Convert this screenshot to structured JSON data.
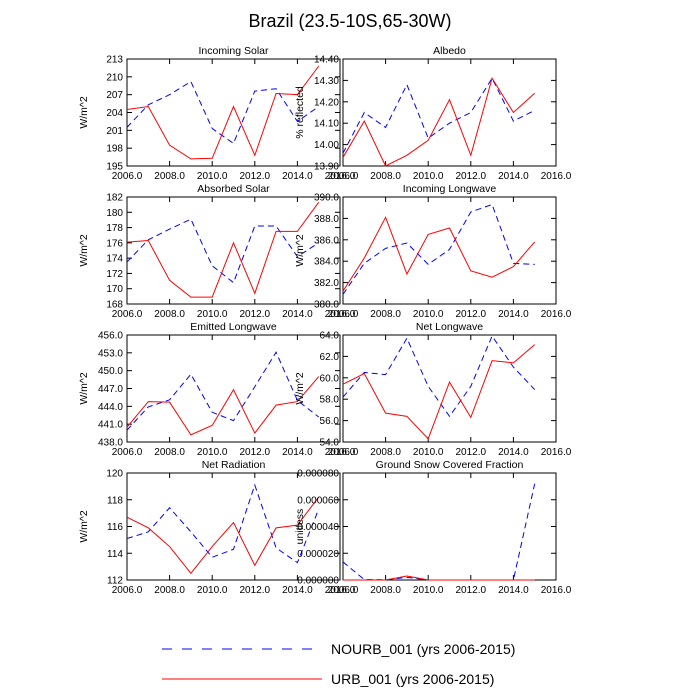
{
  "title": "Brazil (23.5-10S,65-30W)",
  "legend": [
    {
      "label": "NOURB_001 (yrs 2006-2015)",
      "color": "#0000ff",
      "dash": true
    },
    {
      "label": "URB_001 (yrs 2006-2015)",
      "color": "#ff0000",
      "dash": false
    }
  ],
  "chart_data": [
    {
      "type": "line",
      "title": "Incoming Solar",
      "ylabel": "W/m^2",
      "xlim": [
        2006,
        2016
      ],
      "xticks": [
        2006,
        2008,
        2010,
        2012,
        2014,
        2016
      ],
      "xtick_labels": [
        "2006.0",
        "2008.0",
        "2010.0",
        "2012.0",
        "2014.0",
        "2016.0"
      ],
      "ylim": [
        195,
        213
      ],
      "yticks": [
        195,
        198,
        201,
        204,
        207,
        210,
        213
      ],
      "ytick_labels": [
        "195",
        "198",
        "201",
        "204",
        "207",
        "210",
        "213"
      ],
      "x": [
        2006,
        2007,
        2008,
        2009,
        2010,
        2011,
        2012,
        2013,
        2014,
        2015
      ],
      "series": [
        {
          "name": "NOURB_001 (yrs 2006-2015)",
          "values": [
            201.5,
            205.3,
            207.0,
            209.2,
            201.3,
            198.8,
            207.6,
            208.0,
            202.5,
            205.0
          ]
        },
        {
          "name": "URB_001 (yrs 2006-2015)",
          "values": [
            204.5,
            205.0,
            198.5,
            196.2,
            196.3,
            205.0,
            196.8,
            207.2,
            207.0,
            211.8
          ]
        }
      ]
    },
    {
      "type": "line",
      "title": "Albedo",
      "ylabel": "% reflected",
      "xlim": [
        2006,
        2016
      ],
      "xticks": [
        2006,
        2008,
        2010,
        2012,
        2014,
        2016
      ],
      "xtick_labels": [
        "2006.0",
        "2008.0",
        "2010.0",
        "2012.0",
        "2014.0",
        "2016.0"
      ],
      "ylim": [
        13.9,
        14.4
      ],
      "yticks": [
        13.9,
        14.0,
        14.1,
        14.2,
        14.3,
        14.4
      ],
      "ytick_labels": [
        "13.90",
        "14.00",
        "14.10",
        "14.20",
        "14.30",
        "14.40"
      ],
      "x": [
        2006,
        2007,
        2008,
        2009,
        2010,
        2011,
        2012,
        2013,
        2014,
        2015
      ],
      "series": [
        {
          "name": "NOURB_001 (yrs 2006-2015)",
          "values": [
            13.96,
            14.15,
            14.08,
            14.28,
            14.03,
            14.1,
            14.15,
            14.31,
            14.11,
            14.16
          ]
        },
        {
          "name": "URB_001 (yrs 2006-2015)",
          "values": [
            13.94,
            14.11,
            13.9,
            13.95,
            14.02,
            14.21,
            13.95,
            14.31,
            14.15,
            14.24
          ]
        }
      ]
    },
    {
      "type": "line",
      "title": "Absorbed Solar",
      "ylabel": "W/m^2",
      "xlim": [
        2006,
        2016
      ],
      "xticks": [
        2006,
        2008,
        2010,
        2012,
        2014,
        2016
      ],
      "xtick_labels": [
        "2006.0",
        "2008.0",
        "2010.0",
        "2012.0",
        "2014.0",
        "2016.0"
      ],
      "ylim": [
        168,
        182
      ],
      "yticks": [
        168,
        170,
        172,
        174,
        176,
        178,
        180,
        182
      ],
      "ytick_labels": [
        "168",
        "170",
        "172",
        "174",
        "176",
        "178",
        "180",
        "182"
      ],
      "x": [
        2006,
        2007,
        2008,
        2009,
        2010,
        2011,
        2012,
        2013,
        2014,
        2015
      ],
      "series": [
        {
          "name": "NOURB_001 (yrs 2006-2015)",
          "values": [
            173.5,
            176.4,
            177.8,
            179.1,
            173.0,
            170.8,
            178.2,
            178.2,
            174.2,
            176.0
          ]
        },
        {
          "name": "URB_001 (yrs 2006-2015)",
          "values": [
            176.1,
            176.3,
            171.1,
            168.9,
            168.9,
            176.0,
            169.4,
            177.5,
            177.5,
            181.3
          ]
        }
      ]
    },
    {
      "type": "line",
      "title": "Incoming Longwave",
      "ylabel": "W/m^2",
      "xlim": [
        2006,
        2016
      ],
      "xticks": [
        2006,
        2008,
        2010,
        2012,
        2014,
        2016
      ],
      "xtick_labels": [
        "2006.0",
        "2008.0",
        "2010.0",
        "2012.0",
        "2014.0",
        "2016.0"
      ],
      "ylim": [
        380,
        390
      ],
      "yticks": [
        380,
        382,
        384,
        386,
        388,
        390
      ],
      "ytick_labels": [
        "380.0",
        "382.0",
        "384.0",
        "386.0",
        "388.0",
        "390.0"
      ],
      "x": [
        2006,
        2007,
        2008,
        2009,
        2010,
        2011,
        2012,
        2013,
        2014,
        2015
      ],
      "series": [
        {
          "name": "NOURB_001 (yrs 2006-2015)",
          "values": [
            380.9,
            383.8,
            385.2,
            385.7,
            383.7,
            385.1,
            388.6,
            389.3,
            383.8,
            383.7
          ]
        },
        {
          "name": "URB_001 (yrs 2006-2015)",
          "values": [
            381.2,
            384.3,
            388.1,
            382.8,
            386.5,
            387.1,
            383.1,
            382.5,
            383.5,
            385.8
          ]
        }
      ]
    },
    {
      "type": "line",
      "title": "Emitted Longwave",
      "ylabel": "W/m^2",
      "xlim": [
        2006,
        2016
      ],
      "xticks": [
        2006,
        2008,
        2010,
        2012,
        2014,
        2016
      ],
      "xtick_labels": [
        "2006.0",
        "2008.0",
        "2010.0",
        "2012.0",
        "2014.0",
        "2016.0"
      ],
      "ylim": [
        438,
        456
      ],
      "yticks": [
        438,
        441,
        444,
        447,
        450,
        453,
        456
      ],
      "ytick_labels": [
        "438.0",
        "441.0",
        "444.0",
        "447.0",
        "450.0",
        "453.0",
        "456.0"
      ],
      "x": [
        2006,
        2007,
        2008,
        2009,
        2010,
        2011,
        2012,
        2013,
        2014,
        2015
      ],
      "series": [
        {
          "name": "NOURB_001 (yrs 2006-2015)",
          "values": [
            440.0,
            443.9,
            445.1,
            449.4,
            443.0,
            441.6,
            447.3,
            453.1,
            445.0,
            442.2
          ]
        },
        {
          "name": "URB_001 (yrs 2006-2015)",
          "values": [
            440.5,
            444.8,
            444.7,
            439.2,
            440.8,
            446.8,
            439.5,
            444.2,
            444.8,
            449.0
          ]
        }
      ]
    },
    {
      "type": "line",
      "title": "Net Longwave",
      "ylabel": "W/m^2",
      "xlim": [
        2006,
        2016
      ],
      "xticks": [
        2006,
        2008,
        2010,
        2012,
        2014,
        2016
      ],
      "xtick_labels": [
        "2006.0",
        "2008.0",
        "2010.0",
        "2012.0",
        "2014.0",
        "2016.0"
      ],
      "ylim": [
        54,
        64
      ],
      "yticks": [
        54,
        56,
        58,
        60,
        62,
        64
      ],
      "ytick_labels": [
        "54.0",
        "56.0",
        "58.0",
        "60.0",
        "62.0",
        "64.0"
      ],
      "x": [
        2006,
        2007,
        2008,
        2009,
        2010,
        2011,
        2012,
        2013,
        2014,
        2015
      ],
      "series": [
        {
          "name": "NOURB_001 (yrs 2006-2015)",
          "values": [
            58.2,
            60.5,
            60.3,
            63.7,
            59.2,
            56.4,
            59.2,
            63.9,
            61.0,
            58.9
          ]
        },
        {
          "name": "URB_001 (yrs 2006-2015)",
          "values": [
            59.4,
            60.4,
            56.7,
            56.4,
            54.3,
            59.6,
            56.3,
            61.6,
            61.4,
            63.1
          ]
        }
      ]
    },
    {
      "type": "line",
      "title": "Net Radiation",
      "ylabel": "W/m^2",
      "xlim": [
        2006,
        2016
      ],
      "xticks": [
        2006,
        2008,
        2010,
        2012,
        2014,
        2016
      ],
      "xtick_labels": [
        "2006.0",
        "2008.0",
        "2010.0",
        "2012.0",
        "2014.0",
        "2016.0"
      ],
      "ylim": [
        112,
        120
      ],
      "yticks": [
        112,
        114,
        116,
        118,
        120
      ],
      "ytick_labels": [
        "112",
        "114",
        "116",
        "118",
        "120"
      ],
      "x": [
        2006,
        2007,
        2008,
        2009,
        2010,
        2011,
        2012,
        2013,
        2014,
        2015
      ],
      "series": [
        {
          "name": "NOURB_001 (yrs 2006-2015)",
          "values": [
            115.1,
            115.6,
            117.4,
            115.6,
            113.7,
            114.3,
            119.1,
            114.4,
            113.3,
            117.3
          ]
        },
        {
          "name": "URB_001 (yrs 2006-2015)",
          "values": [
            116.7,
            115.9,
            114.5,
            112.5,
            114.5,
            116.3,
            113.1,
            115.9,
            116.1,
            118.2
          ]
        }
      ]
    },
    {
      "type": "line",
      "title": "Ground Snow Covered Fraction",
      "ylabel": "unitless",
      "xlim": [
        2006,
        2016
      ],
      "xticks": [
        2006,
        2008,
        2010,
        2012,
        2014,
        2016
      ],
      "xtick_labels": [
        "2006.0",
        "2008.0",
        "2010.0",
        "2012.0",
        "2014.0",
        "2016.0"
      ],
      "ylim": [
        0,
        8e-05
      ],
      "yticks": [
        0,
        2e-05,
        4e-05,
        6e-05,
        8e-05
      ],
      "ytick_labels": [
        "0.000000",
        "0.000020",
        "0.000040",
        "0.000060",
        "0.000080"
      ],
      "x": [
        2006,
        2007,
        2008,
        2009,
        2010,
        2011,
        2012,
        2013,
        2014,
        2015
      ],
      "series": [
        {
          "name": "NOURB_001 (yrs 2006-2015)",
          "values": [
            1.35e-05,
            3e-07,
            2e-07,
            2e-06,
            0.0,
            0.0,
            0.0,
            0.0,
            0.0,
            7.2e-05
          ]
        },
        {
          "name": "URB_001 (yrs 2006-2015)",
          "values": [
            0.0,
            0.0,
            0.0,
            3e-06,
            0.0,
            0.0,
            0.0,
            0.0,
            0.0,
            0.0
          ]
        }
      ]
    }
  ]
}
